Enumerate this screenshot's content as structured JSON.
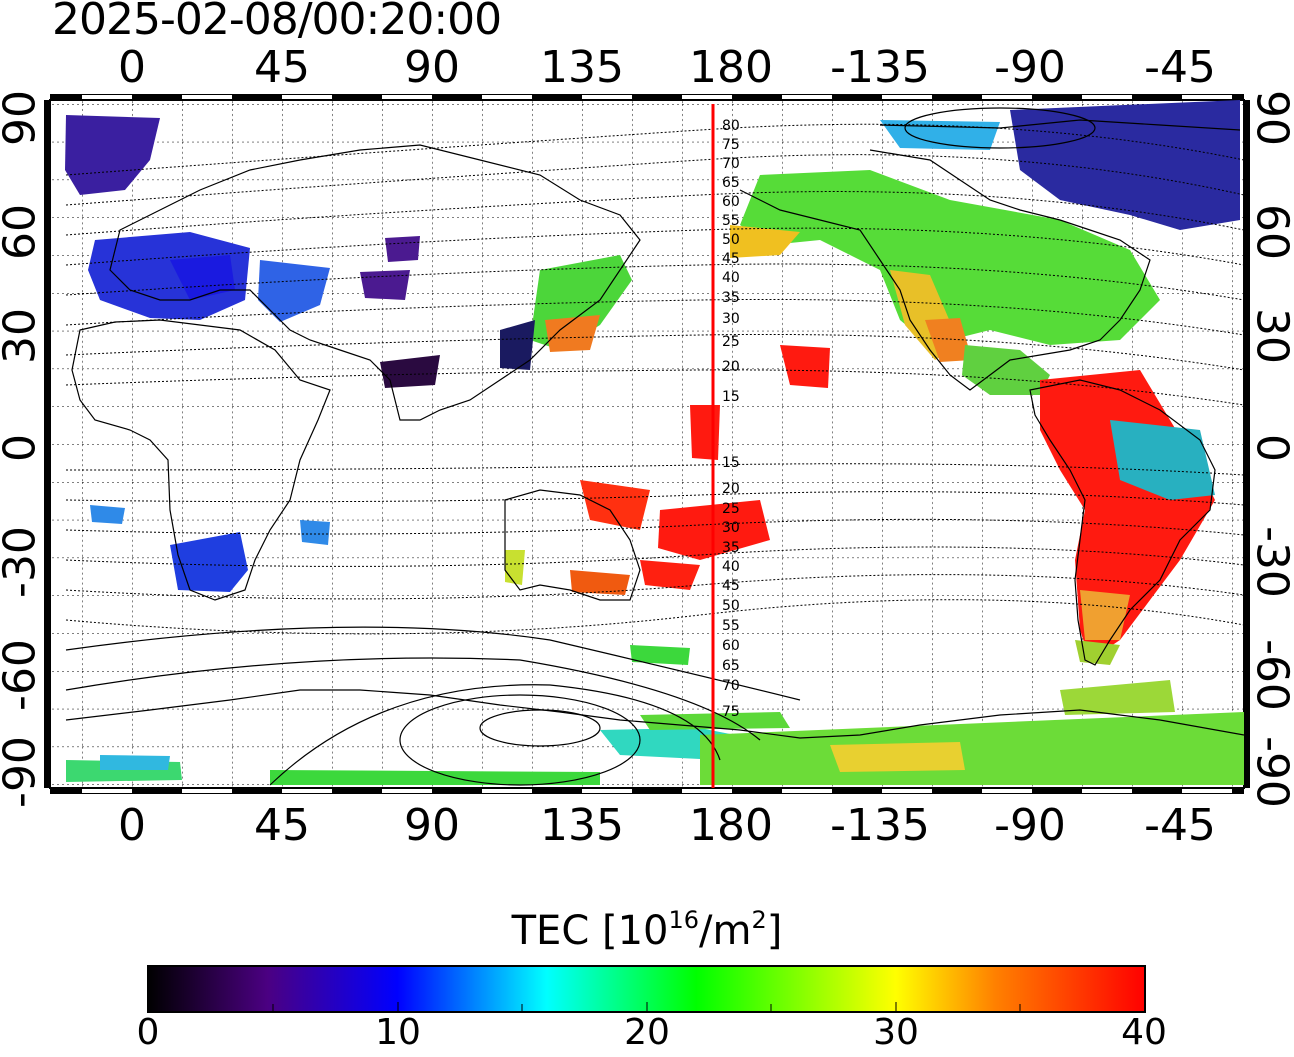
{
  "title": "2025-02-08/00:20:00",
  "top_lon_labels": [
    "0",
    "45",
    "90",
    "135",
    "180",
    "-135",
    "-90",
    "-45"
  ],
  "bottom_lon_labels": [
    "0",
    "45",
    "90",
    "135",
    "180",
    "-135",
    "-90",
    "-45"
  ],
  "lat_labels": [
    "90",
    "60",
    "30",
    "0",
    "-30",
    "-60",
    "-90"
  ],
  "meridian_labels_north": [
    "80",
    "75",
    "70",
    "65",
    "60",
    "55",
    "50",
    "45",
    "40",
    "35",
    "30",
    "25",
    "20",
    "15"
  ],
  "meridian_labels_south": [
    "15",
    "20",
    "25",
    "30",
    "35",
    "40",
    "45",
    "50",
    "55",
    "60",
    "65",
    "70",
    "75"
  ],
  "colorbar": {
    "title_prefix": "TEC  [10",
    "title_exp1": "16",
    "title_mid": "/m",
    "title_exp2": "2",
    "title_suffix": "]",
    "ticks": [
      "0",
      "10",
      "20",
      "30",
      "40"
    ],
    "range": [
      0,
      40
    ],
    "colors": [
      "#000000",
      "#4b0082",
      "#0000ff",
      "#00ffff",
      "#00ff00",
      "#ffff00",
      "#ff8000",
      "#ff0000"
    ]
  },
  "colors": {
    "meridian_line": "#ff0000",
    "frame": "#000000",
    "grid": "#000000"
  }
}
